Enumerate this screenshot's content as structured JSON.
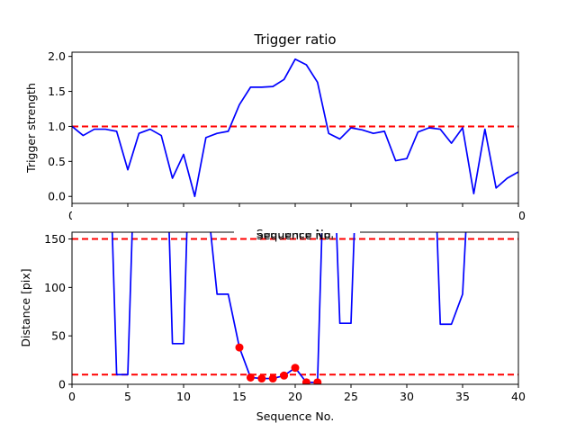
{
  "colors": {
    "series_line": "#0000ff",
    "reference_line": "#ff0000",
    "marker": "#ff0000",
    "axes": "#000000",
    "background": "#ffffff"
  },
  "chart_data": [
    {
      "type": "line",
      "title": "Trigger ratio",
      "xlabel": "Sequence No.",
      "ylabel": "Trigger strength",
      "xlim": [
        0,
        40
      ],
      "ylim": [
        -0.1,
        2.06
      ],
      "xticks": [
        0,
        5,
        10,
        15,
        20,
        25,
        30,
        35,
        40
      ],
      "yticks": [
        0.0,
        0.5,
        1.0,
        1.5,
        2.0
      ],
      "xtick_labels": [
        "0",
        "5",
        "10",
        "15",
        "20",
        "25",
        "30",
        "35",
        "40"
      ],
      "ytick_labels": [
        "0.0",
        "0.5",
        "1.0",
        "1.5",
        "2.0"
      ],
      "grid": false,
      "series": [
        {
          "x": [
            0,
            1,
            2,
            3,
            4,
            5,
            6,
            7,
            8,
            9,
            10,
            11,
            12,
            13,
            14,
            15,
            16,
            17,
            18,
            19,
            20,
            21,
            22,
            23,
            24,
            25,
            26,
            27,
            28,
            29,
            30,
            31,
            32,
            33,
            34,
            35,
            36,
            37,
            38,
            39,
            40
          ],
          "values": [
            1.0,
            0.87,
            0.96,
            0.96,
            0.93,
            0.38,
            0.9,
            0.96,
            0.87,
            0.26,
            0.6,
            0.0,
            0.84,
            0.9,
            0.93,
            1.31,
            1.56,
            1.56,
            1.57,
            1.67,
            1.96,
            1.88,
            1.63,
            0.9,
            0.82,
            0.98,
            0.95,
            0.9,
            0.93,
            0.51,
            0.54,
            0.92,
            0.98,
            0.96,
            0.76,
            0.98,
            0.04,
            0.96,
            0.12,
            0.26,
            0.35
          ]
        }
      ],
      "reference_lines": [
        {
          "axis": "y",
          "value": 1.0,
          "style": "dashed"
        }
      ]
    },
    {
      "type": "line",
      "title": "",
      "xlabel": "Sequence No.",
      "ylabel": "Distance [pix]",
      "xlim": [
        0,
        40
      ],
      "ylim": [
        0,
        157
      ],
      "xticks": [
        0,
        5,
        10,
        15,
        20,
        25,
        30,
        35,
        40
      ],
      "yticks": [
        0,
        50,
        100,
        150
      ],
      "xtick_labels": [
        "0",
        "5",
        "10",
        "15",
        "20",
        "25",
        "30",
        "35",
        "40"
      ],
      "ytick_labels": [
        "0",
        "50",
        "100",
        "150"
      ],
      "grid": false,
      "series": [
        {
          "x": [
            3.6,
            4,
            5,
            5.4,
            8.7,
            9,
            10,
            10.3,
            12.4,
            13,
            14,
            15,
            16,
            17,
            18,
            19,
            20,
            21,
            22,
            22.4,
            23.7,
            24,
            25,
            25.3,
            32.7,
            33,
            34,
            35,
            35.3
          ],
          "values": [
            160,
            10,
            10,
            160,
            160,
            42,
            42,
            160,
            160,
            93,
            93,
            38,
            7,
            6,
            6,
            9,
            17,
            2,
            2,
            160,
            160,
            63,
            63,
            160,
            160,
            62,
            62,
            93,
            160
          ]
        }
      ],
      "markers": {
        "x": [
          15,
          16,
          17,
          18,
          19,
          20,
          21,
          22
        ],
        "values": [
          38,
          7,
          6,
          6,
          9,
          17,
          2,
          2
        ]
      },
      "reference_lines": [
        {
          "axis": "y",
          "value": 150,
          "style": "dashed"
        },
        {
          "axis": "y",
          "value": 10,
          "style": "dashed"
        }
      ]
    }
  ]
}
